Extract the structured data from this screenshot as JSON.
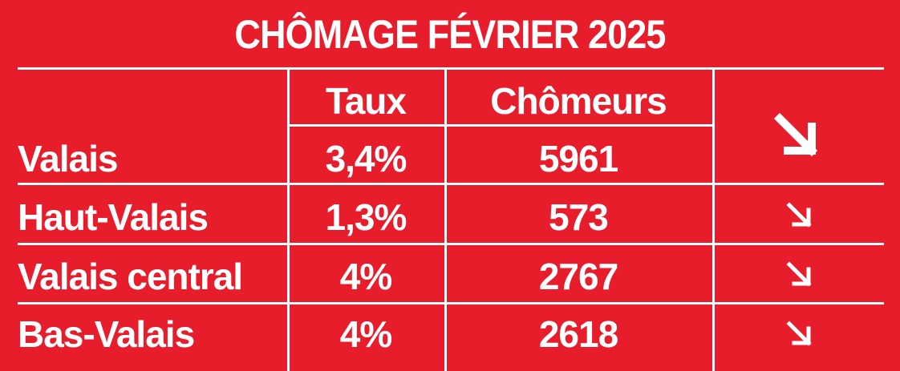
{
  "title": "CHÔMAGE FÉVRIER 2025",
  "header": {
    "region": "",
    "rate": "Taux",
    "unemployed": "Chômeurs"
  },
  "rows": [
    {
      "region": "Valais",
      "rate": "3,4%",
      "unemployed": "5961",
      "trend": "down"
    },
    {
      "region": "Haut-Valais",
      "rate": "1,3%",
      "unemployed": "573",
      "trend": "down"
    },
    {
      "region": "Valais central",
      "rate": "4%",
      "unemployed": "2767",
      "trend": "down"
    },
    {
      "region": "Bas-Valais",
      "rate": "4%",
      "unemployed": "2618",
      "trend": "down"
    }
  ],
  "icons": {
    "trend_big": "arrow-down-right-icon",
    "trend_small": "arrow-down-right-icon"
  },
  "colors": {
    "background": "#e81d2c",
    "text": "#ffffff",
    "lines": "#ffffff"
  }
}
